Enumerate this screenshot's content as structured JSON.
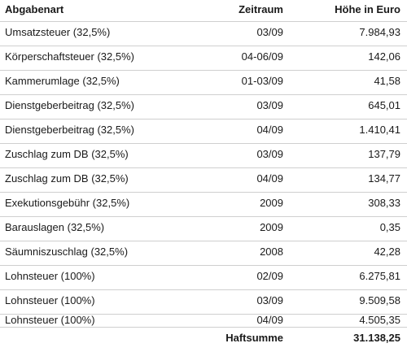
{
  "table": {
    "headers": {
      "type": "Abgabenart",
      "period": "Zeitraum",
      "amount": "Höhe in Euro"
    },
    "rows": [
      {
        "type": "Umsatzsteuer (32,5%)",
        "period": "03/09",
        "amount": "7.984,93"
      },
      {
        "type": "Körperschaftsteuer (32,5%)",
        "period": "04-06/09",
        "amount": "142,06"
      },
      {
        "type": "Kammerumlage (32,5%)",
        "period": "01-03/09",
        "amount": "41,58"
      },
      {
        "type": "Dienstgeberbeitrag (32,5%)",
        "period": "03/09",
        "amount": "645,01"
      },
      {
        "type": "Dienstgeberbeitrag (32,5%)",
        "period": "04/09",
        "amount": "1.410,41"
      },
      {
        "type": "Zuschlag zum DB (32,5%)",
        "period": "03/09",
        "amount": "137,79"
      },
      {
        "type": "Zuschlag zum DB (32,5%)",
        "period": "04/09",
        "amount": "134,77"
      },
      {
        "type": "Exekutionsgebühr (32,5%)",
        "period": "2009",
        "amount": "308,33"
      },
      {
        "type": "Barauslagen  (32,5%)",
        "period": "2009",
        "amount": "0,35"
      },
      {
        "type": "Säumniszuschlag  (32,5%)",
        "period": "2008",
        "amount": "42,28"
      },
      {
        "type": "Lohnsteuer (100%)",
        "period": "02/09",
        "amount": "6.275,81"
      },
      {
        "type": "Lohnsteuer (100%)",
        "period": "03/09",
        "amount": "9.509,58"
      },
      {
        "type": "Lohnsteuer (100%)",
        "period": "04/09",
        "amount": "4.505,35"
      }
    ],
    "total": {
      "label": "Haftsumme",
      "amount": "31.138,25"
    }
  }
}
